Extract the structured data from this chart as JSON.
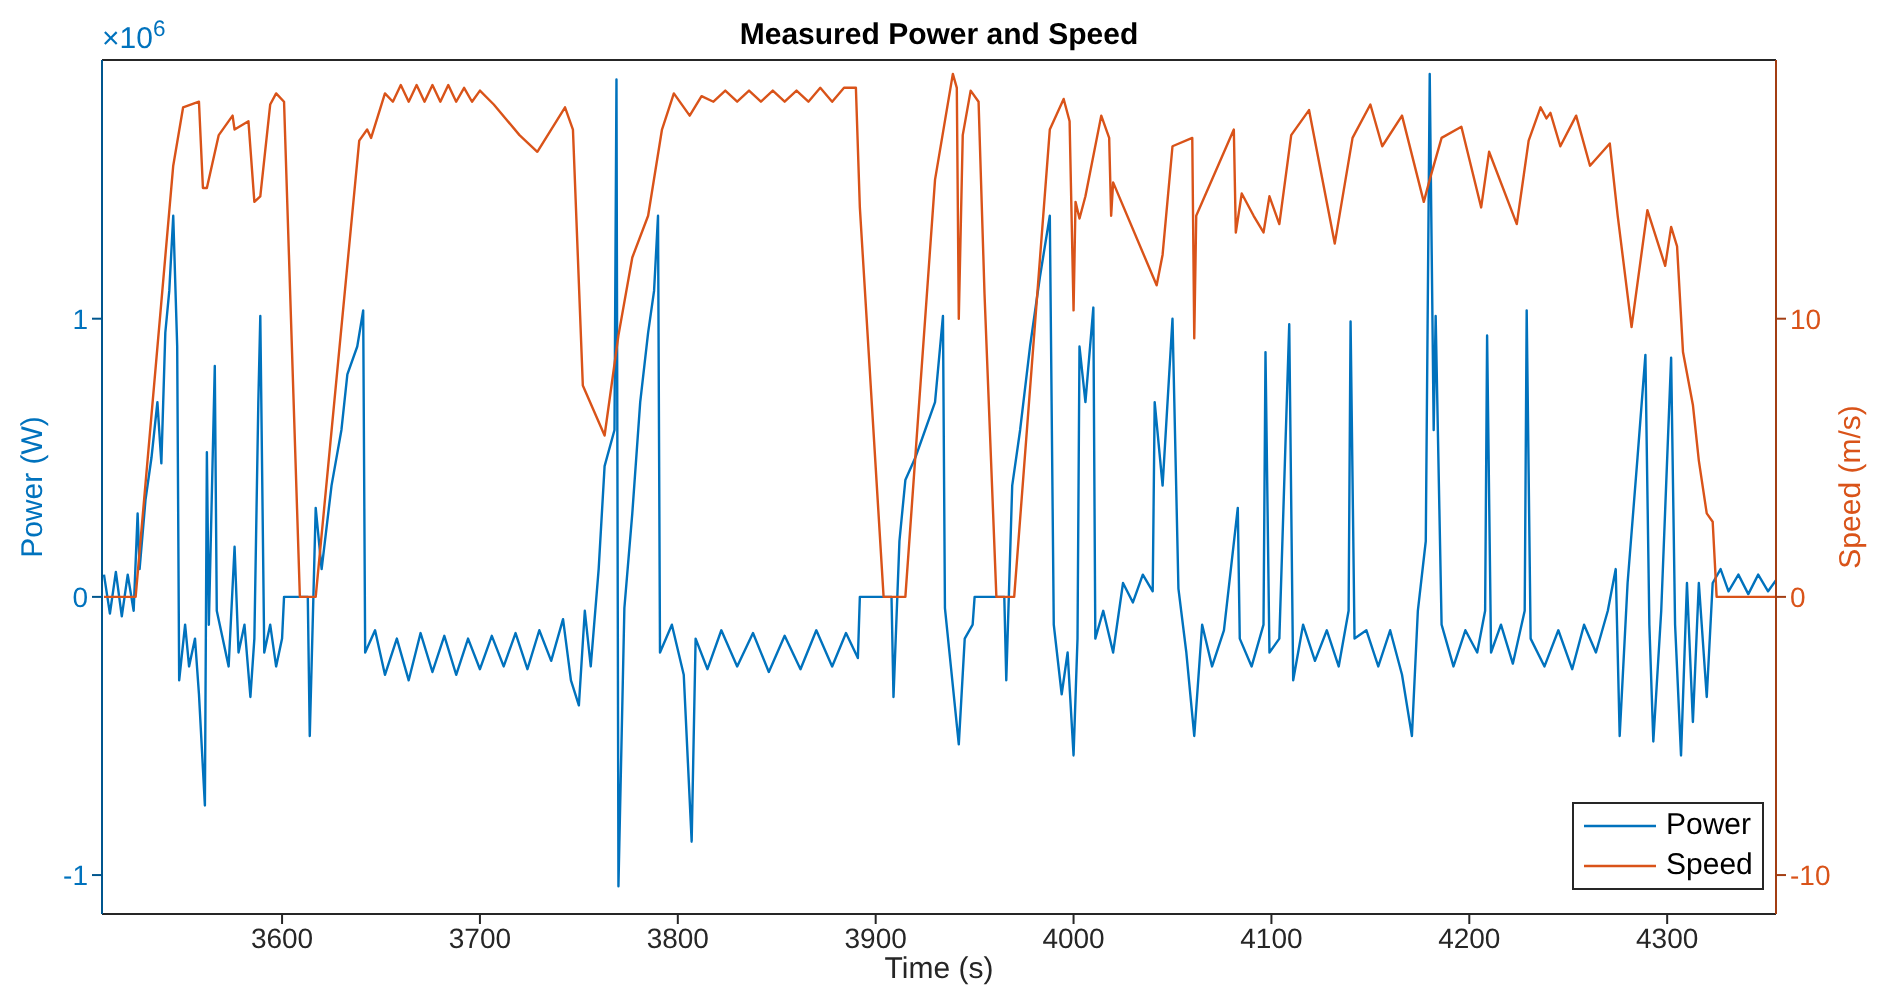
{
  "chart_data": {
    "type": "line",
    "title": "Measured Power and Speed",
    "xlabel": "Time (s)",
    "ylabel": "Power (W)",
    "y2label": "Speed (m/s)",
    "annotations": [
      "×10$^{6}$"
    ],
    "xlim": [
      3509,
      4355
    ],
    "xticks": [
      3600,
      3700,
      3800,
      3900,
      4000,
      4100,
      4200,
      4300
    ],
    "ylim": [
      -1.14,
      1.93
    ],
    "yticks": [
      -1,
      0,
      1
    ],
    "y2lim": [
      -11.4,
      19.3
    ],
    "y2ticks": [
      -10,
      0,
      10
    ],
    "grid": false,
    "legend": "bottom right",
    "marker": "none",
    "line_style": "solid",
    "series": [
      {
        "name": "Power",
        "color": "#0072bd",
        "x": [
          3510,
          3513,
          3516,
          3519,
          3522,
          3525,
          3527,
          3528,
          3531,
          3534,
          3537,
          3539,
          3541,
          3543,
          3545,
          3547,
          3548,
          3551,
          3553,
          3556,
          3558,
          3561,
          3562,
          3563,
          3566,
          3567,
          3570,
          3573,
          3576,
          3578,
          3581,
          3584,
          3586,
          3588,
          3589,
          3591,
          3594,
          3597,
          3600,
          3601,
          3613,
          3614,
          3617,
          3620,
          3625,
          3630,
          3633,
          3638,
          3641,
          3642,
          3647,
          3652,
          3658,
          3664,
          3670,
          3676,
          3682,
          3688,
          3694,
          3700,
          3706,
          3712,
          3718,
          3724,
          3730,
          3736,
          3742,
          3746,
          3750,
          3753,
          3756,
          3760,
          3763,
          3768,
          3769,
          3770,
          3773,
          3777,
          3781,
          3785,
          3788,
          3790,
          3791,
          3797,
          3803,
          3807,
          3809,
          3815,
          3822,
          3830,
          3838,
          3846,
          3854,
          3862,
          3870,
          3878,
          3885,
          3891,
          3892,
          3908,
          3909,
          3912,
          3915,
          3920,
          3925,
          3930,
          3934,
          3935,
          3938,
          3942,
          3945,
          3949,
          3950,
          3965,
          3966,
          3969,
          3973,
          3978,
          3983,
          3988,
          3990,
          3994,
          3997,
          4000,
          4002,
          4003,
          4006,
          4010,
          4011,
          4015,
          4020,
          4025,
          4030,
          4035,
          4040,
          4041,
          4045,
          4050,
          4053,
          4057,
          4061,
          4065,
          4070,
          4076,
          4083,
          4084,
          4090,
          4096,
          4097,
          4099,
          4104,
          4109,
          4111,
          4116,
          4122,
          4128,
          4134,
          4139,
          4140,
          4142,
          4148,
          4154,
          4160,
          4166,
          4171,
          4174,
          4178,
          4180,
          4182,
          4183,
          4186,
          4192,
          4198,
          4204,
          4208,
          4209,
          4211,
          4216,
          4222,
          4228,
          4229,
          4231,
          4238,
          4245,
          4252,
          4258,
          4264,
          4270,
          4274,
          4276,
          4280,
          4285,
          4289,
          4291,
          4293,
          4297,
          4302,
          4304,
          4307,
          4310,
          4313,
          4316,
          4320,
          4323,
          4327,
          4331,
          4336,
          4341,
          4346,
          4351,
          4355
        ],
        "values": [
          0.08,
          -0.06,
          0.09,
          -0.07,
          0.08,
          -0.05,
          0.3,
          0.1,
          0.35,
          0.5,
          0.7,
          0.48,
          0.95,
          1.1,
          1.37,
          0.9,
          -0.3,
          -0.1,
          -0.25,
          -0.15,
          -0.35,
          -0.75,
          0.52,
          -0.1,
          0.83,
          -0.05,
          -0.15,
          -0.25,
          0.18,
          -0.2,
          -0.1,
          -0.36,
          -0.15,
          0.7,
          1.01,
          -0.2,
          -0.1,
          -0.25,
          -0.15,
          0,
          0,
          -0.5,
          0.32,
          0.1,
          0.4,
          0.6,
          0.8,
          0.9,
          1.03,
          -0.2,
          -0.12,
          -0.28,
          -0.15,
          -0.3,
          -0.13,
          -0.27,
          -0.14,
          -0.28,
          -0.15,
          -0.26,
          -0.14,
          -0.25,
          -0.13,
          -0.26,
          -0.12,
          -0.23,
          -0.08,
          -0.3,
          -0.39,
          -0.05,
          -0.25,
          0.1,
          0.47,
          0.6,
          1.86,
          -1.04,
          -0.04,
          0.3,
          0.7,
          0.95,
          1.1,
          1.37,
          -0.2,
          -0.1,
          -0.28,
          -0.88,
          -0.15,
          -0.26,
          -0.12,
          -0.25,
          -0.13,
          -0.27,
          -0.14,
          -0.26,
          -0.12,
          -0.25,
          -0.13,
          -0.22,
          0,
          0,
          -0.36,
          0.2,
          0.42,
          0.5,
          0.6,
          0.7,
          1.01,
          -0.04,
          -0.25,
          -0.53,
          -0.15,
          -0.1,
          0,
          0,
          -0.3,
          0.4,
          0.6,
          0.9,
          1.15,
          1.37,
          -0.1,
          -0.35,
          -0.2,
          -0.57,
          -0.15,
          0.9,
          0.7,
          1.04,
          -0.15,
          -0.05,
          -0.2,
          0.05,
          -0.02,
          0.08,
          0.02,
          0.7,
          0.4,
          1.0,
          0.03,
          -0.2,
          -0.5,
          -0.1,
          -0.25,
          -0.12,
          0.32,
          -0.15,
          -0.25,
          -0.1,
          0.88,
          -0.2,
          -0.15,
          0.98,
          -0.3,
          -0.1,
          -0.23,
          -0.12,
          -0.25,
          -0.05,
          0.99,
          -0.15,
          -0.12,
          -0.25,
          -0.12,
          -0.28,
          -0.5,
          -0.05,
          0.2,
          1.88,
          0.6,
          1.01,
          -0.1,
          -0.25,
          -0.12,
          -0.2,
          -0.05,
          0.94,
          -0.2,
          -0.1,
          -0.24,
          -0.05,
          1.03,
          -0.15,
          -0.25,
          -0.12,
          -0.26,
          -0.1,
          -0.2,
          -0.05,
          0.1,
          -0.5,
          0.05,
          0.5,
          0.87,
          -0.1,
          -0.52,
          -0.05,
          0.86,
          -0.1,
          -0.57,
          0.05,
          -0.45,
          0.05,
          -0.36,
          0.05,
          0.1,
          0.02,
          0.08,
          0.01,
          0.08,
          0.02,
          0.06
        ]
      },
      {
        "name": "Speed",
        "color": "#d95319",
        "axis": "y2",
        "x": [
          3510,
          3526,
          3545,
          3550,
          3558,
          3560,
          3562,
          3568,
          3575,
          3576,
          3583,
          3586,
          3589,
          3594,
          3597,
          3601,
          3609,
          3617,
          3639,
          3643,
          3645,
          3652,
          3656,
          3660,
          3664,
          3668,
          3672,
          3676,
          3680,
          3684,
          3688,
          3692,
          3696,
          3700,
          3707,
          3720,
          3729,
          3743,
          3747,
          3752,
          3763,
          3770,
          3777,
          3785,
          3792,
          3798,
          3806,
          3812,
          3818,
          3824,
          3830,
          3836,
          3842,
          3848,
          3854,
          3860,
          3866,
          3872,
          3878,
          3884,
          3890,
          3892,
          3904,
          3915,
          3930,
          3939,
          3941,
          3942,
          3944,
          3948,
          3952,
          3955,
          3961,
          3970,
          3988,
          3995,
          3998,
          4000,
          4001,
          4003,
          4006,
          4014,
          4018,
          4019,
          4020,
          4042,
          4045,
          4050,
          4060,
          4061,
          4062,
          4081,
          4082,
          4085,
          4091,
          4096,
          4099,
          4104,
          4110,
          4119,
          4132,
          4141,
          4150,
          4156,
          4166,
          4177,
          4180,
          4186,
          4196,
          4206,
          4210,
          4224,
          4230,
          4236,
          4239,
          4241,
          4246,
          4254,
          4261,
          4271,
          4275,
          4282,
          4290,
          4299,
          4302,
          4305,
          4308,
          4313,
          4316,
          4320,
          4323,
          4325,
          4355
        ],
        "values": [
          0,
          0,
          15.5,
          17.6,
          17.8,
          14.7,
          14.7,
          16.6,
          17.3,
          16.8,
          17.1,
          14.2,
          14.4,
          17.7,
          18.1,
          17.8,
          0,
          0,
          16.4,
          16.8,
          16.5,
          18.1,
          17.8,
          18.4,
          17.8,
          18.4,
          17.8,
          18.4,
          17.8,
          18.4,
          17.8,
          18.3,
          17.8,
          18.2,
          17.7,
          16.6,
          16.0,
          17.6,
          16.8,
          7.6,
          5.8,
          9.4,
          12.2,
          13.7,
          16.8,
          18.1,
          17.3,
          18.0,
          17.8,
          18.2,
          17.8,
          18.2,
          17.8,
          18.2,
          17.8,
          18.2,
          17.8,
          18.3,
          17.8,
          18.3,
          18.3,
          14.0,
          0,
          0,
          15.0,
          18.8,
          18.3,
          10.0,
          16.6,
          18.2,
          17.8,
          10.9,
          0,
          0,
          16.8,
          17.9,
          17.1,
          10.3,
          14.2,
          13.6,
          14.4,
          17.3,
          16.5,
          13.7,
          14.9,
          11.2,
          12.3,
          16.2,
          16.5,
          9.3,
          13.7,
          16.8,
          13.1,
          14.5,
          13.7,
          13.1,
          14.4,
          13.4,
          16.6,
          17.5,
          12.7,
          16.5,
          17.7,
          16.2,
          17.3,
          14.2,
          15.0,
          16.5,
          16.9,
          14.0,
          16.0,
          13.4,
          16.4,
          17.6,
          17.2,
          17.4,
          16.2,
          17.3,
          15.5,
          16.3,
          13.7,
          9.7,
          13.9,
          11.9,
          13.3,
          12.6,
          8.8,
          6.9,
          4.9,
          3.0,
          2.7,
          0,
          0
        ]
      }
    ]
  }
}
